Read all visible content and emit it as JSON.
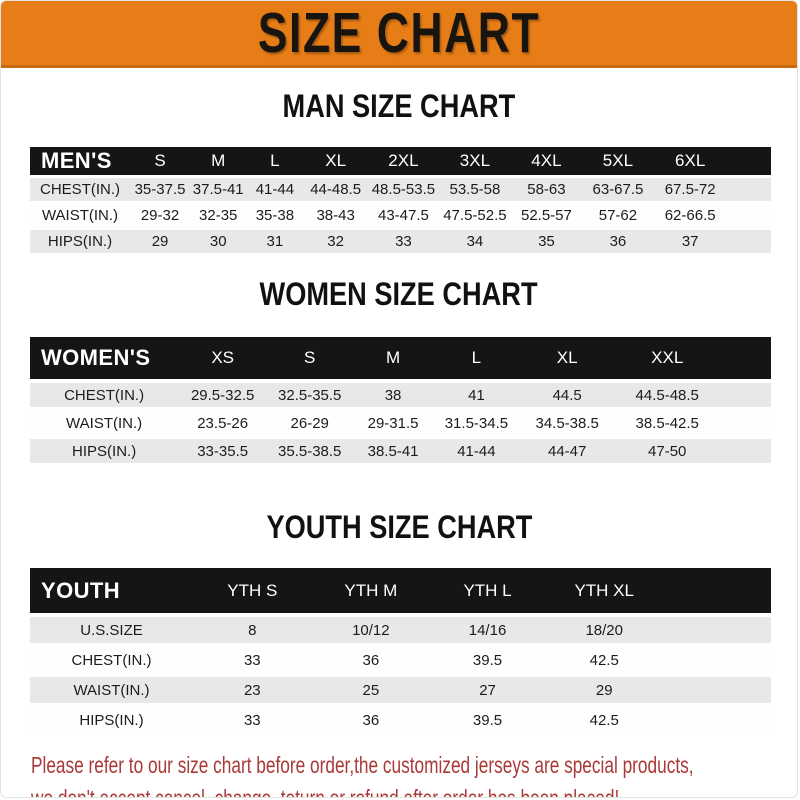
{
  "banner": {
    "title": "SIZE CHART"
  },
  "chart_data": [
    {
      "type": "table",
      "title": "MAN SIZE CHART",
      "label": "MEN'S",
      "columns": [
        "S",
        "M",
        "L",
        "XL",
        "2XL",
        "3XL",
        "4XL",
        "5XL",
        "6XL"
      ],
      "rows": [
        {
          "label": "CHEST(IN.)",
          "values": [
            "35-37.5",
            "37.5-41",
            "41-44",
            "44-48.5",
            "48.5-53.5",
            "53.5-58",
            "58-63",
            "63-67.5",
            "67.5-72"
          ]
        },
        {
          "label": "WAIST(IN.)",
          "values": [
            "29-32",
            "32-35",
            "35-38",
            "38-43",
            "43-47.5",
            "47.5-52.5",
            "52.5-57",
            "57-62",
            "62-66.5"
          ]
        },
        {
          "label": "HIPS(IN.)",
          "values": [
            "29",
            "30",
            "31",
            "32",
            "33",
            "34",
            "35",
            "36",
            "37"
          ]
        }
      ]
    },
    {
      "type": "table",
      "title": "WOMEN SIZE CHART",
      "label": "WOMEN'S",
      "columns": [
        "XS",
        "S",
        "M",
        "L",
        "XL",
        "XXL"
      ],
      "rows": [
        {
          "label": "CHEST(IN.)",
          "values": [
            "29.5-32.5",
            "32.5-35.5",
            "38",
            "41",
            "44.5",
            "44.5-48.5"
          ]
        },
        {
          "label": "WAIST(IN.)",
          "values": [
            "23.5-26",
            "26-29",
            "29-31.5",
            "31.5-34.5",
            "34.5-38.5",
            "38.5-42.5"
          ]
        },
        {
          "label": "HIPS(IN.)",
          "values": [
            "33-35.5",
            "35.5-38.5",
            "38.5-41",
            "41-44",
            "44-47",
            "47-50"
          ]
        }
      ]
    },
    {
      "type": "table",
      "title": "YOUTH SIZE CHART",
      "label": "YOUTH",
      "columns": [
        "YTH S",
        "YTH M",
        "YTH L",
        "YTH XL"
      ],
      "rows": [
        {
          "label": "U.S.SIZE",
          "values": [
            "8",
            "10/12",
            "14/16",
            "18/20"
          ]
        },
        {
          "label": "CHEST(IN.)",
          "values": [
            "33",
            "36",
            "39.5",
            "42.5"
          ]
        },
        {
          "label": "WAIST(IN.)",
          "values": [
            "23",
            "25",
            "27",
            "29"
          ]
        },
        {
          "label": "HIPS(IN.)",
          "values": [
            "33",
            "36",
            "39.5",
            "42.5"
          ]
        }
      ]
    }
  ],
  "footer": {
    "line1": "Please refer to our size chart before order,the customized jerseys are special products,",
    "line2": "we don't accept cancel, change, teturn or refund after order has been placed!"
  },
  "colors": {
    "banner_bg": "#E67D17",
    "header_bar": "#151515",
    "row_alt": "#E8E8E8",
    "notice": "#A93A38"
  }
}
